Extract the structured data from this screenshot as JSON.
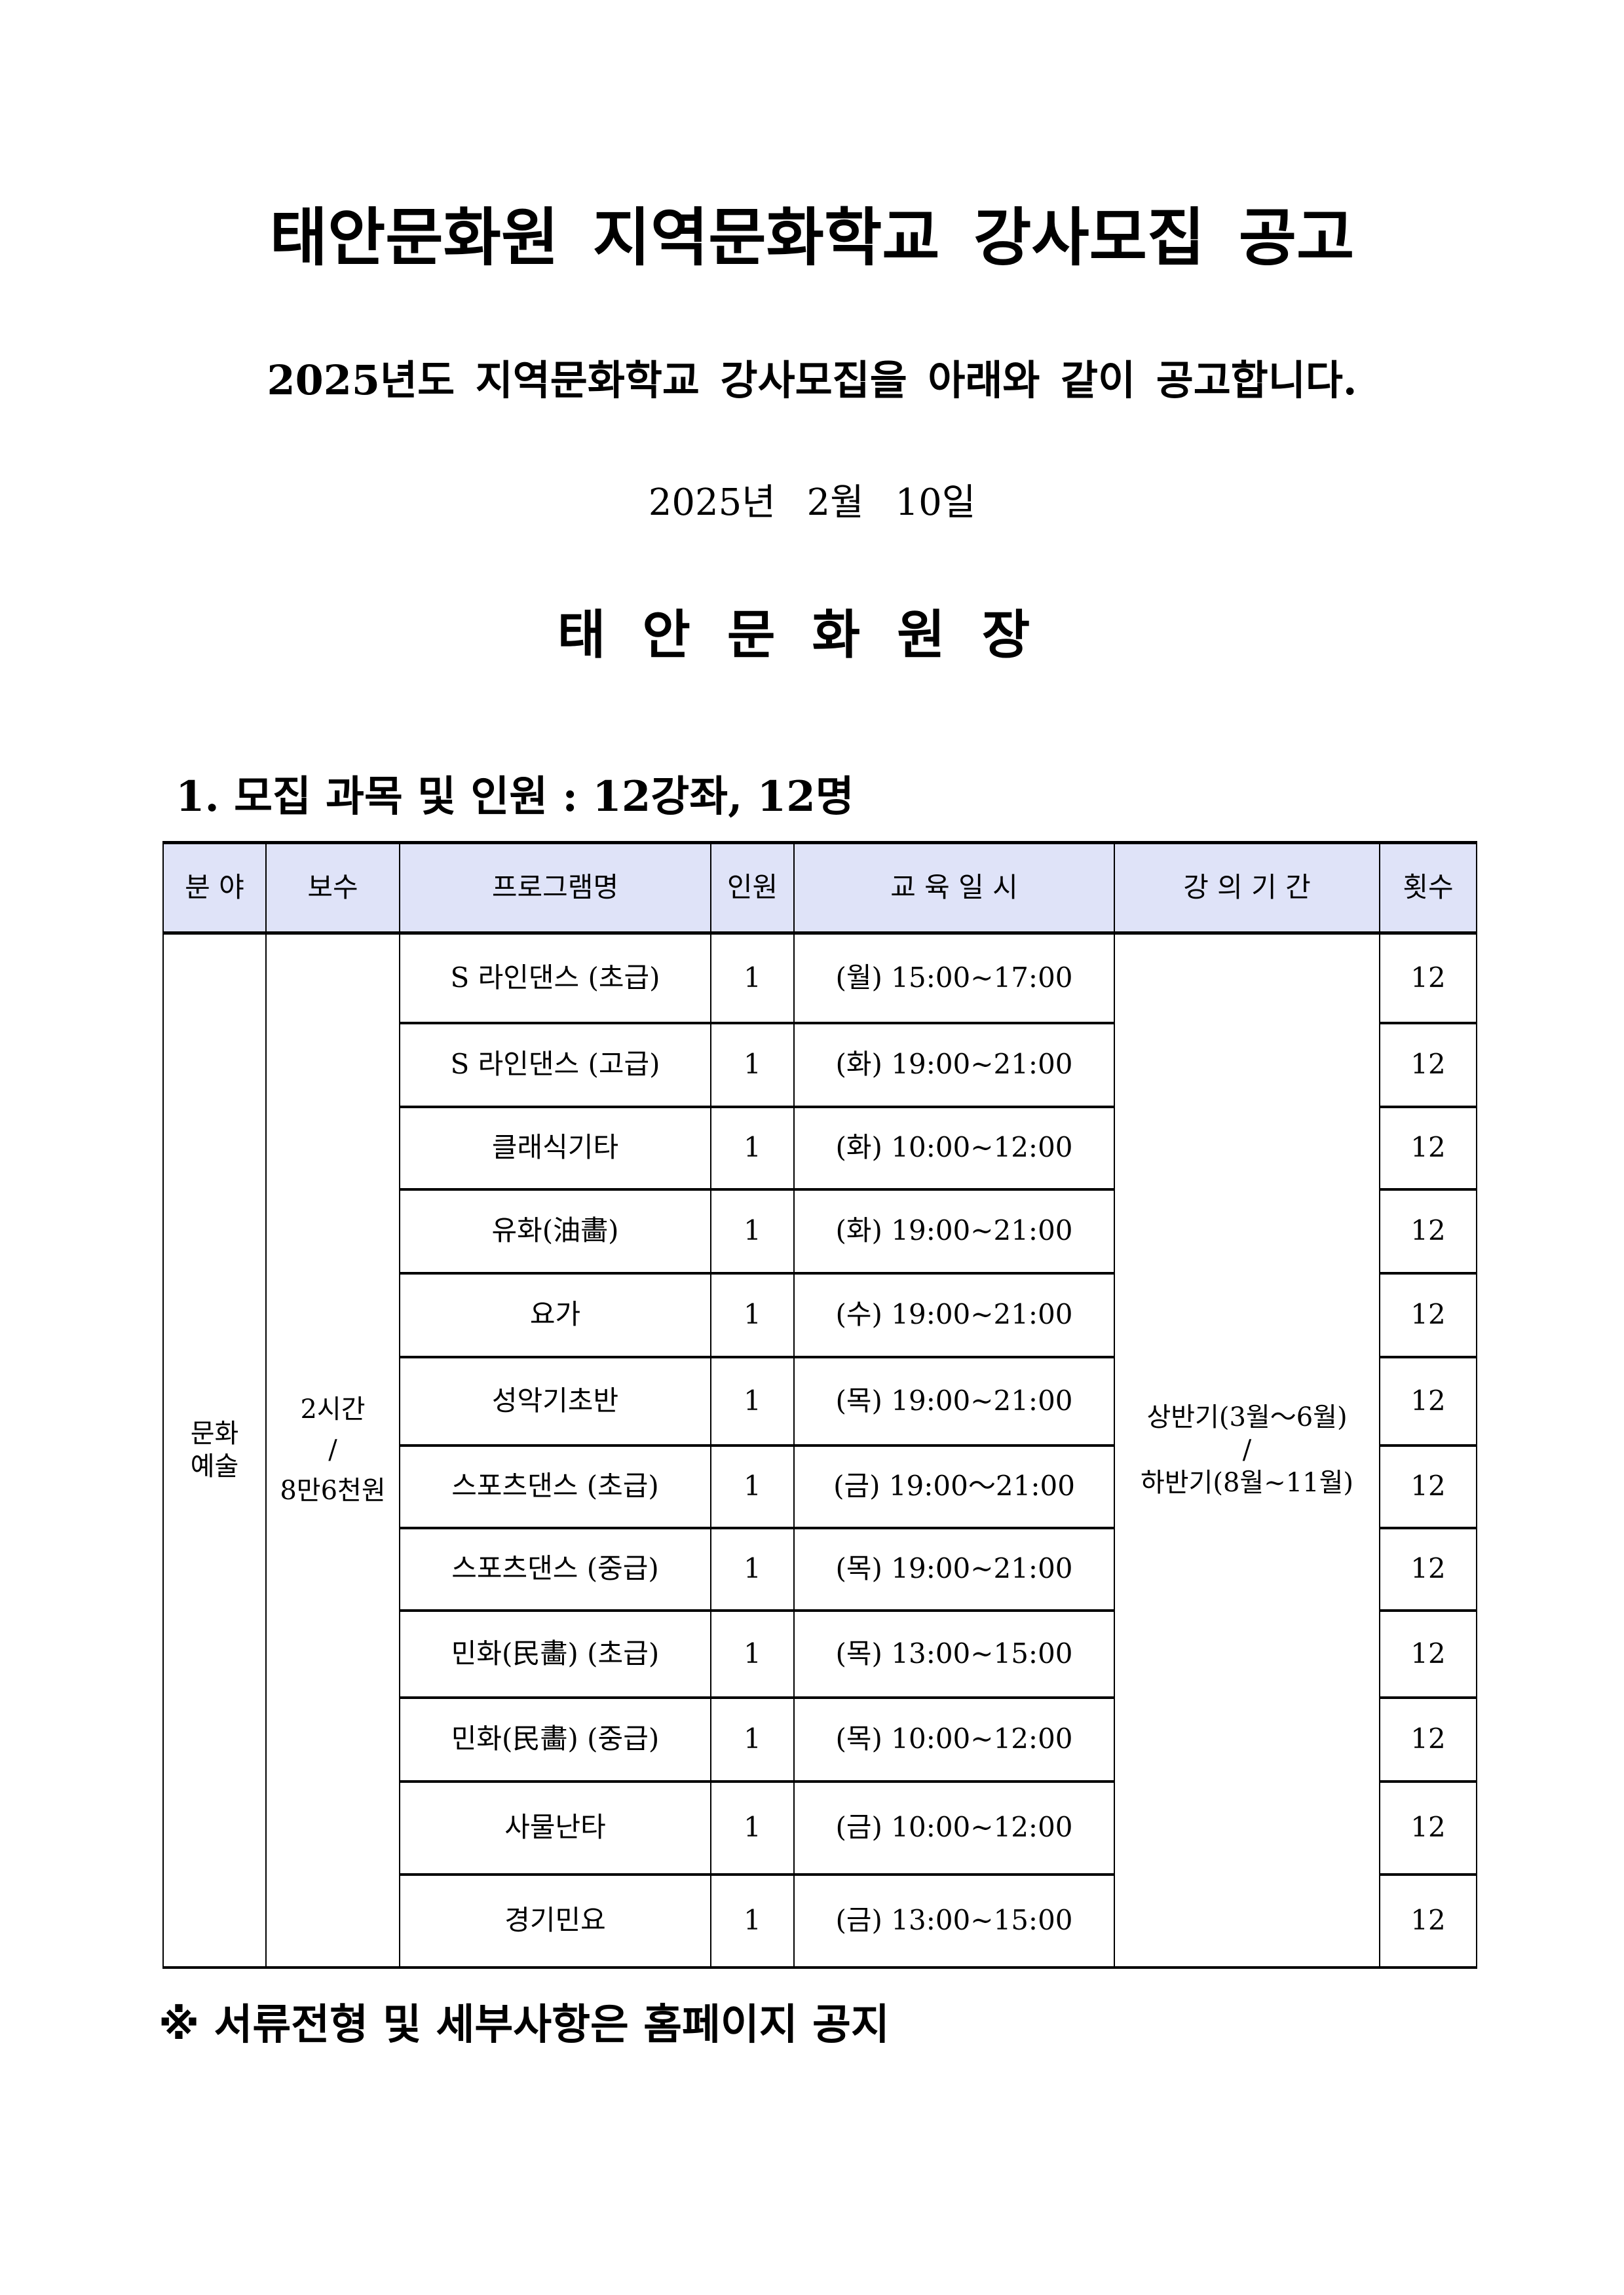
{
  "title": "태안문화원 지역문화학교 강사모집 공고",
  "subtitle": "2025년도 지역문화학교 강사모집을 아래와 같이 공고합니다.",
  "date": "2025년  2월  10일",
  "issuer": "태안문화원장",
  "section_heading": "1. 모집 과목 및 인원 : 12강좌, 12명",
  "table": {
    "headers": [
      "분 야",
      "보수",
      "프로그램명",
      "인원",
      "교 육 일 시",
      "강 의 기 간",
      "횟수"
    ],
    "field": "문화\n예술",
    "pay_line1": "2시간",
    "pay_sep": "/",
    "pay_line2": "8만6천원",
    "period_line1": "상반기(3월～6월)",
    "period_sep": "/",
    "period_line2": "하반기(8월~11월)",
    "rows": [
      {
        "program": "S 라인댄스 (초급)",
        "count": "1",
        "schedule": "(월) 15:00~17:00",
        "sessions": "12"
      },
      {
        "program": "S 라인댄스 (고급)",
        "count": "1",
        "schedule": "(화) 19:00~21:00",
        "sessions": "12"
      },
      {
        "program": "클래식기타",
        "count": "1",
        "schedule": "(화) 10:00~12:00",
        "sessions": "12"
      },
      {
        "program": "유화(油畵)",
        "count": "1",
        "schedule": "(화) 19:00~21:00",
        "sessions": "12"
      },
      {
        "program": "요가",
        "count": "1",
        "schedule": "(수) 19:00~21:00",
        "sessions": "12"
      },
      {
        "program": "성악기초반",
        "count": "1",
        "schedule": "(목) 19:00~21:00",
        "sessions": "12"
      },
      {
        "program": "스포츠댄스 (초급)",
        "count": "1",
        "schedule": "(금) 19:00～21:00",
        "sessions": "12"
      },
      {
        "program": "스포츠댄스 (중급)",
        "count": "1",
        "schedule": "(목) 19:00~21:00",
        "sessions": "12"
      },
      {
        "program": "민화(民畵) (초급)",
        "count": "1",
        "schedule": "(목) 13:00~15:00",
        "sessions": "12"
      },
      {
        "program": "민화(民畵) (중급)",
        "count": "1",
        "schedule": "(목) 10:00~12:00",
        "sessions": "12"
      },
      {
        "program": "사물난타",
        "count": "1",
        "schedule": "(금) 10:00~12:00",
        "sessions": "12"
      },
      {
        "program": "경기민요",
        "count": "1",
        "schedule": "(금) 13:00~15:00",
        "sessions": "12"
      }
    ]
  },
  "note": "※ 서류전형 및 세부사항은 홈페이지 공지"
}
